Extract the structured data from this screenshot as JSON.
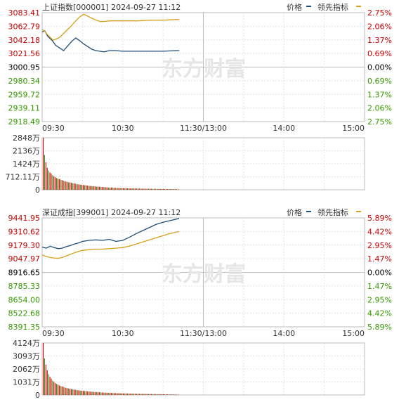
{
  "panels": [
    {
      "title": "上证指数[000001] 2024-09-27 11:12",
      "legend": [
        {
          "label": "价格",
          "color": "#1f4e79"
        },
        {
          "label": "领先指标",
          "color": "#d4a017"
        }
      ],
      "watermark": "东方财富",
      "price_ticks": [
        "3083.41",
        "3062.79",
        "3042.18",
        "3021.56",
        "3000.95",
        "2980.34",
        "2959.72",
        "2939.11",
        "2918.49"
      ],
      "pct_ticks": [
        "2.75%",
        "2.06%",
        "1.37%",
        "0.69%",
        "0.00%",
        "0.69%",
        "1.37%",
        "2.06%",
        "2.75%"
      ],
      "time_ticks": [
        "09:30",
        "10:30",
        "11:30/13:00",
        "14:00",
        "15:00"
      ],
      "volume_ticks": [
        "2848万",
        "2136万",
        "1424万",
        "712.11万",
        "0"
      ],
      "tick_colors": {
        "up": "#cc0000",
        "flat": "#000000",
        "down": "#339900"
      }
    },
    {
      "title": "深证成指[399001] 2024-09-27 11:12",
      "legend": [
        {
          "label": "价格",
          "color": "#1f4e79"
        },
        {
          "label": "领先指标",
          "color": "#d4a017"
        }
      ],
      "watermark": "东方财富",
      "price_ticks": [
        "9441.95",
        "9310.62",
        "9179.30",
        "9047.97",
        "8916.65",
        "8785.33",
        "8654.00",
        "8522.68",
        "8391.35"
      ],
      "pct_ticks": [
        "5.89%",
        "4.42%",
        "2.95%",
        "1.47%",
        "0.00%",
        "1.47%",
        "2.95%",
        "4.42%",
        "5.89%"
      ],
      "time_ticks": [
        "09:30",
        "10:30",
        "11:30/13:00",
        "14:00",
        "15:00"
      ],
      "volume_ticks": [
        "4124万",
        "3093万",
        "2062万",
        "1031万",
        "0"
      ],
      "tick_colors": {
        "up": "#cc0000",
        "flat": "#000000",
        "down": "#339900"
      }
    }
  ],
  "chart_data": [
    {
      "type": "line",
      "title": "上证指数[000001] 2024-09-27 11:12",
      "x_unit": "minutes after 09:30",
      "xlim": [
        0,
        240
      ],
      "ylim": [
        2918.49,
        3083.41
      ],
      "series": [
        {
          "name": "价格",
          "color": "#1f4e79",
          "x": [
            0,
            2,
            4,
            6,
            8,
            10,
            13,
            16,
            19,
            22,
            25,
            28,
            31,
            34,
            37,
            40,
            43,
            46,
            50,
            55,
            60,
            65,
            70,
            80,
            90,
            100,
            102
          ],
          "y": [
            3054,
            3056,
            3048,
            3044,
            3040,
            3034,
            3030,
            3026,
            3033,
            3040,
            3045,
            3041,
            3036,
            3032,
            3028,
            3026,
            3025,
            3024,
            3026,
            3026,
            3025,
            3025,
            3025,
            3025,
            3025,
            3026,
            3026
          ]
        },
        {
          "name": "领先指标",
          "color": "#d4a017",
          "x": [
            0,
            2,
            4,
            6,
            8,
            10,
            13,
            16,
            19,
            22,
            25,
            28,
            31,
            34,
            37,
            40,
            43,
            46,
            50,
            55,
            60,
            65,
            70,
            80,
            90,
            100,
            102
          ],
          "y": [
            3058,
            3055,
            3050,
            3046,
            3042,
            3043,
            3046,
            3052,
            3058,
            3064,
            3071,
            3077,
            3081,
            3078,
            3075,
            3072,
            3070,
            3070,
            3071,
            3071,
            3071,
            3071,
            3071,
            3072,
            3072,
            3073,
            3073
          ]
        }
      ],
      "volume": {
        "ylim": [
          0,
          2848
        ],
        "values": [
          2848,
          1900,
          1500,
          1200,
          1050,
          950,
          880,
          800,
          740,
          690,
          650,
          610,
          580,
          560,
          530,
          500,
          470,
          450,
          430,
          410,
          400,
          380,
          360,
          350,
          330,
          320,
          300,
          290,
          280,
          270,
          260,
          250,
          240,
          230,
          220,
          210,
          200,
          195,
          190,
          180,
          175,
          170,
          165,
          160,
          150,
          145,
          140,
          135,
          130,
          125,
          120,
          115,
          110,
          105,
          100,
          98,
          96,
          94,
          92,
          90,
          88,
          86,
          84,
          82,
          80,
          78,
          76,
          74,
          72,
          70,
          68,
          66,
          64,
          62,
          60,
          58,
          56,
          55,
          54,
          53,
          52,
          51,
          50,
          49,
          48,
          47,
          46,
          45,
          44,
          43,
          42,
          41,
          40,
          39,
          38,
          37,
          36,
          35,
          34,
          33,
          32,
          31
        ]
      }
    },
    {
      "type": "line",
      "title": "深证成指[399001] 2024-09-27 11:12",
      "x_unit": "minutes after 09:30",
      "xlim": [
        0,
        240
      ],
      "ylim": [
        8391.35,
        9441.95
      ],
      "series": [
        {
          "name": "价格",
          "color": "#1f4e79",
          "x": [
            0,
            3,
            6,
            9,
            12,
            15,
            18,
            21,
            24,
            27,
            30,
            35,
            40,
            45,
            50,
            55,
            60,
            65,
            70,
            75,
            80,
            85,
            90,
            95,
            100,
            102
          ],
          "y": [
            9160,
            9150,
            9168,
            9155,
            9145,
            9150,
            9165,
            9175,
            9190,
            9200,
            9215,
            9225,
            9230,
            9225,
            9235,
            9215,
            9225,
            9255,
            9290,
            9320,
            9350,
            9380,
            9400,
            9415,
            9430,
            9435
          ]
        },
        {
          "name": "领先指标",
          "color": "#d4a017",
          "x": [
            0,
            3,
            6,
            9,
            12,
            15,
            18,
            21,
            24,
            27,
            30,
            35,
            40,
            45,
            50,
            55,
            60,
            65,
            70,
            75,
            80,
            85,
            90,
            95,
            100,
            102
          ],
          "y": [
            9085,
            9070,
            9060,
            9055,
            9052,
            9060,
            9075,
            9090,
            9105,
            9118,
            9128,
            9135,
            9140,
            9140,
            9145,
            9150,
            9155,
            9170,
            9190,
            9210,
            9230,
            9250,
            9270,
            9290,
            9305,
            9310
          ]
        }
      ],
      "volume": {
        "ylim": [
          0,
          4124
        ],
        "values": [
          4124,
          2900,
          2400,
          1950,
          1650,
          1450,
          1300,
          1150,
          1050,
          950,
          880,
          820,
          760,
          720,
          680,
          640,
          600,
          570,
          540,
          510,
          490,
          470,
          450,
          430,
          410,
          395,
          380,
          365,
          350,
          335,
          320,
          310,
          300,
          290,
          280,
          270,
          260,
          252,
          244,
          236,
          228,
          220,
          212,
          205,
          198,
          192,
          186,
          180,
          175,
          170,
          165,
          160,
          156,
          152,
          148,
          144,
          140,
          136,
          132,
          128,
          125,
          122,
          119,
          116,
          113,
          110,
          107,
          104,
          101,
          98,
          95,
          92,
          90,
          88,
          86,
          84,
          82,
          80,
          78,
          76,
          74,
          72,
          70,
          68,
          66,
          64,
          62,
          60,
          58,
          56,
          54,
          52,
          50,
          48,
          46,
          44,
          42,
          40,
          38,
          36,
          34,
          32
        ]
      }
    }
  ]
}
